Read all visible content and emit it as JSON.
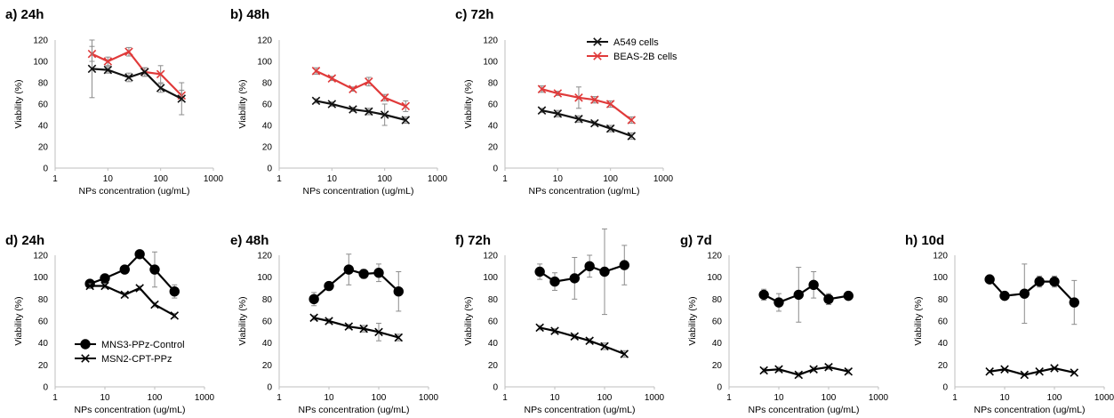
{
  "chart_data": [
    {
      "panel": "a",
      "label": "a) 24h",
      "type": "line",
      "xlabel": "NPs concentration (ug/mL)",
      "ylabel": "Viability (%)",
      "xscale": "log",
      "xlim": [
        1,
        1000
      ],
      "ylim": [
        0,
        120
      ],
      "xticks": [
        "1",
        "10",
        "100",
        "1000"
      ],
      "yticks": [
        "0",
        "20",
        "40",
        "60",
        "80",
        "100",
        "120"
      ],
      "series": [
        {
          "name": "BEAS-2B cells",
          "color": "#e03a3a",
          "marker": "x",
          "x": [
            5,
            10,
            25,
            50,
            100,
            250
          ],
          "y": [
            107,
            100,
            109,
            90,
            88,
            68
          ],
          "err": [
            7,
            4,
            4,
            4,
            8,
            5
          ]
        },
        {
          "name": "A549 cells",
          "color": "#111111",
          "marker": "x",
          "x": [
            5,
            10,
            25,
            50,
            100,
            250
          ],
          "y": [
            93,
            92,
            85,
            90,
            75,
            65
          ],
          "err": [
            27,
            3,
            4,
            4,
            4,
            15
          ]
        }
      ]
    },
    {
      "panel": "b",
      "label": "b) 48h",
      "type": "line",
      "xlabel": "NPs concentration (ug/mL)",
      "ylabel": "Viability (%)",
      "xscale": "log",
      "xlim": [
        1,
        1000
      ],
      "ylim": [
        0,
        120
      ],
      "xticks": [
        "1",
        "10",
        "100",
        "1000"
      ],
      "yticks": [
        "0",
        "20",
        "40",
        "60",
        "80",
        "100",
        "120"
      ],
      "series": [
        {
          "name": "BEAS-2B cells",
          "color": "#e03a3a",
          "marker": "x",
          "x": [
            5,
            10,
            25,
            50,
            100,
            250
          ],
          "y": [
            91,
            84,
            74,
            81,
            66,
            58
          ],
          "err": [
            3,
            2,
            2,
            4,
            3,
            5
          ]
        },
        {
          "name": "A549 cells",
          "color": "#111111",
          "marker": "x",
          "x": [
            5,
            10,
            25,
            50,
            100,
            250
          ],
          "y": [
            63,
            60,
            55,
            53,
            50,
            45
          ],
          "err": [
            2,
            2,
            2,
            3,
            10,
            3
          ]
        }
      ]
    },
    {
      "panel": "c",
      "label": "c) 72h",
      "type": "line",
      "xlabel": "NPs concentration (ug/mL)",
      "ylabel": "Viability (%)",
      "xscale": "log",
      "xlim": [
        1,
        1000
      ],
      "ylim": [
        0,
        120
      ],
      "xticks": [
        "1",
        "10",
        "100",
        "1000"
      ],
      "yticks": [
        "0",
        "20",
        "40",
        "60",
        "80",
        "100",
        "120"
      ],
      "legend": {
        "position": "top-right",
        "entries": [
          "A549 cells",
          "BEAS-2B cells"
        ]
      },
      "series": [
        {
          "name": "BEAS-2B cells",
          "color": "#e03a3a",
          "marker": "x",
          "x": [
            5,
            10,
            25,
            50,
            100,
            250
          ],
          "y": [
            74,
            70,
            66,
            64,
            60,
            45
          ],
          "err": [
            3,
            2,
            10,
            3,
            3,
            3
          ]
        },
        {
          "name": "A549 cells",
          "color": "#111111",
          "marker": "x",
          "x": [
            5,
            10,
            25,
            50,
            100,
            250
          ],
          "y": [
            54,
            51,
            46,
            42,
            37,
            30
          ],
          "err": [
            2,
            3,
            3,
            2,
            3,
            3
          ]
        }
      ]
    },
    {
      "panel": "d",
      "label": "d) 24h",
      "type": "line",
      "xlabel": "NPs concentration (ug/mL)",
      "ylabel": "Viability (%)",
      "xscale": "log",
      "xlim": [
        1,
        1000
      ],
      "ylim": [
        0,
        120
      ],
      "xticks": [
        "1",
        "10",
        "100",
        "1000"
      ],
      "yticks": [
        "0",
        "20",
        "40",
        "60",
        "80",
        "100",
        "120"
      ],
      "legend": {
        "position": "bottom-left",
        "entries": [
          "MNS3-PPz-Control",
          "MSN2-CPT-PPz"
        ]
      },
      "series": [
        {
          "name": "MNS3-PPz-Control",
          "color": "#000000",
          "marker": "circle",
          "x": [
            5,
            10,
            25,
            50,
            100,
            250
          ],
          "y": [
            94,
            99,
            107,
            121,
            107,
            87
          ],
          "err": [
            3,
            3,
            3,
            2,
            16,
            6
          ]
        },
        {
          "name": "MSN2-CPT-PPz",
          "color": "#000000",
          "marker": "x",
          "x": [
            5,
            10,
            25,
            50,
            100,
            250
          ],
          "y": [
            92,
            92,
            84,
            90,
            75,
            65
          ],
          "err": [
            2,
            2,
            2,
            2,
            2,
            2
          ]
        }
      ]
    },
    {
      "panel": "e",
      "label": "e) 48h",
      "type": "line",
      "xlabel": "NPs concentration (ug/mL)",
      "ylabel": "Viability (%)",
      "xscale": "log",
      "xlim": [
        1,
        1000
      ],
      "ylim": [
        0,
        120
      ],
      "xticks": [
        "1",
        "10",
        "100",
        "1000"
      ],
      "yticks": [
        "0",
        "20",
        "40",
        "60",
        "80",
        "100",
        "120"
      ],
      "series": [
        {
          "name": "MNS3-PPz-Control",
          "color": "#000000",
          "marker": "circle",
          "x": [
            5,
            10,
            25,
            50,
            100,
            250
          ],
          "y": [
            80,
            92,
            107,
            103,
            104,
            87
          ],
          "err": [
            6,
            3,
            14,
            4,
            8,
            18
          ]
        },
        {
          "name": "MSN2-CPT-PPz",
          "color": "#000000",
          "marker": "x",
          "x": [
            5,
            10,
            25,
            50,
            100,
            250
          ],
          "y": [
            63,
            60,
            55,
            53,
            50,
            45
          ],
          "err": [
            2,
            2,
            2,
            3,
            8,
            3
          ]
        }
      ]
    },
    {
      "panel": "f",
      "label": "f) 72h",
      "type": "line",
      "xlabel": "NPs concentration (ug/mL)",
      "ylabel": "Viability (%)",
      "xscale": "log",
      "xlim": [
        1,
        1000
      ],
      "ylim": [
        0,
        120
      ],
      "xticks": [
        "1",
        "10",
        "100",
        "1000"
      ],
      "yticks": [
        "0",
        "20",
        "40",
        "60",
        "80",
        "100",
        "120"
      ],
      "series": [
        {
          "name": "MNS3-PPz-Control",
          "color": "#000000",
          "marker": "circle",
          "x": [
            5,
            10,
            25,
            50,
            100,
            250
          ],
          "y": [
            105,
            96,
            99,
            110,
            105,
            111
          ],
          "err": [
            7,
            8,
            19,
            10,
            39,
            18
          ]
        },
        {
          "name": "MSN2-CPT-PPz",
          "color": "#000000",
          "marker": "x",
          "x": [
            5,
            10,
            25,
            50,
            100,
            250
          ],
          "y": [
            54,
            51,
            46,
            42,
            37,
            30
          ],
          "err": [
            2,
            2,
            2,
            2,
            3,
            3
          ]
        }
      ]
    },
    {
      "panel": "g",
      "label": "g) 7d",
      "type": "line",
      "xlabel": "NPs concentration (ug/mL)",
      "ylabel": "Viability (%)",
      "xscale": "log",
      "xlim": [
        1,
        1000
      ],
      "ylim": [
        0,
        120
      ],
      "xticks": [
        "1",
        "10",
        "100",
        "1000"
      ],
      "yticks": [
        "0",
        "20",
        "40",
        "60",
        "80",
        "100",
        "120"
      ],
      "series": [
        {
          "name": "MNS3-PPz-Control",
          "color": "#000000",
          "marker": "circle",
          "x": [
            5,
            10,
            25,
            50,
            100,
            250
          ],
          "y": [
            84,
            77,
            84,
            93,
            80,
            83
          ],
          "err": [
            5,
            8,
            25,
            12,
            5,
            3
          ]
        },
        {
          "name": "MSN2-CPT-PPz",
          "color": "#000000",
          "marker": "x",
          "x": [
            5,
            10,
            25,
            50,
            100,
            250
          ],
          "y": [
            15,
            16,
            11,
            16,
            18,
            14
          ],
          "err": [
            2,
            2,
            2,
            2,
            2,
            2
          ]
        }
      ]
    },
    {
      "panel": "h",
      "label": "h) 10d",
      "type": "line",
      "xlabel": "NPs concentration (ug/mL)",
      "ylabel": "Viability (%)",
      "xscale": "log",
      "xlim": [
        1,
        1000
      ],
      "ylim": [
        0,
        120
      ],
      "xticks": [
        "1",
        "10",
        "100",
        "1000"
      ],
      "yticks": [
        "0",
        "20",
        "40",
        "60",
        "80",
        "100",
        "120"
      ],
      "series": [
        {
          "name": "MNS3-PPz-Control",
          "color": "#000000",
          "marker": "circle",
          "x": [
            5,
            10,
            25,
            50,
            100,
            250
          ],
          "y": [
            98,
            83,
            85,
            96,
            96,
            77
          ],
          "err": [
            2,
            2,
            27,
            5,
            5,
            20
          ]
        },
        {
          "name": "MSN2-CPT-PPz",
          "color": "#000000",
          "marker": "x",
          "x": [
            5,
            10,
            25,
            50,
            100,
            250
          ],
          "y": [
            14,
            16,
            11,
            14,
            17,
            13
          ],
          "err": [
            1,
            1,
            1,
            1,
            1,
            1
          ]
        }
      ]
    }
  ]
}
